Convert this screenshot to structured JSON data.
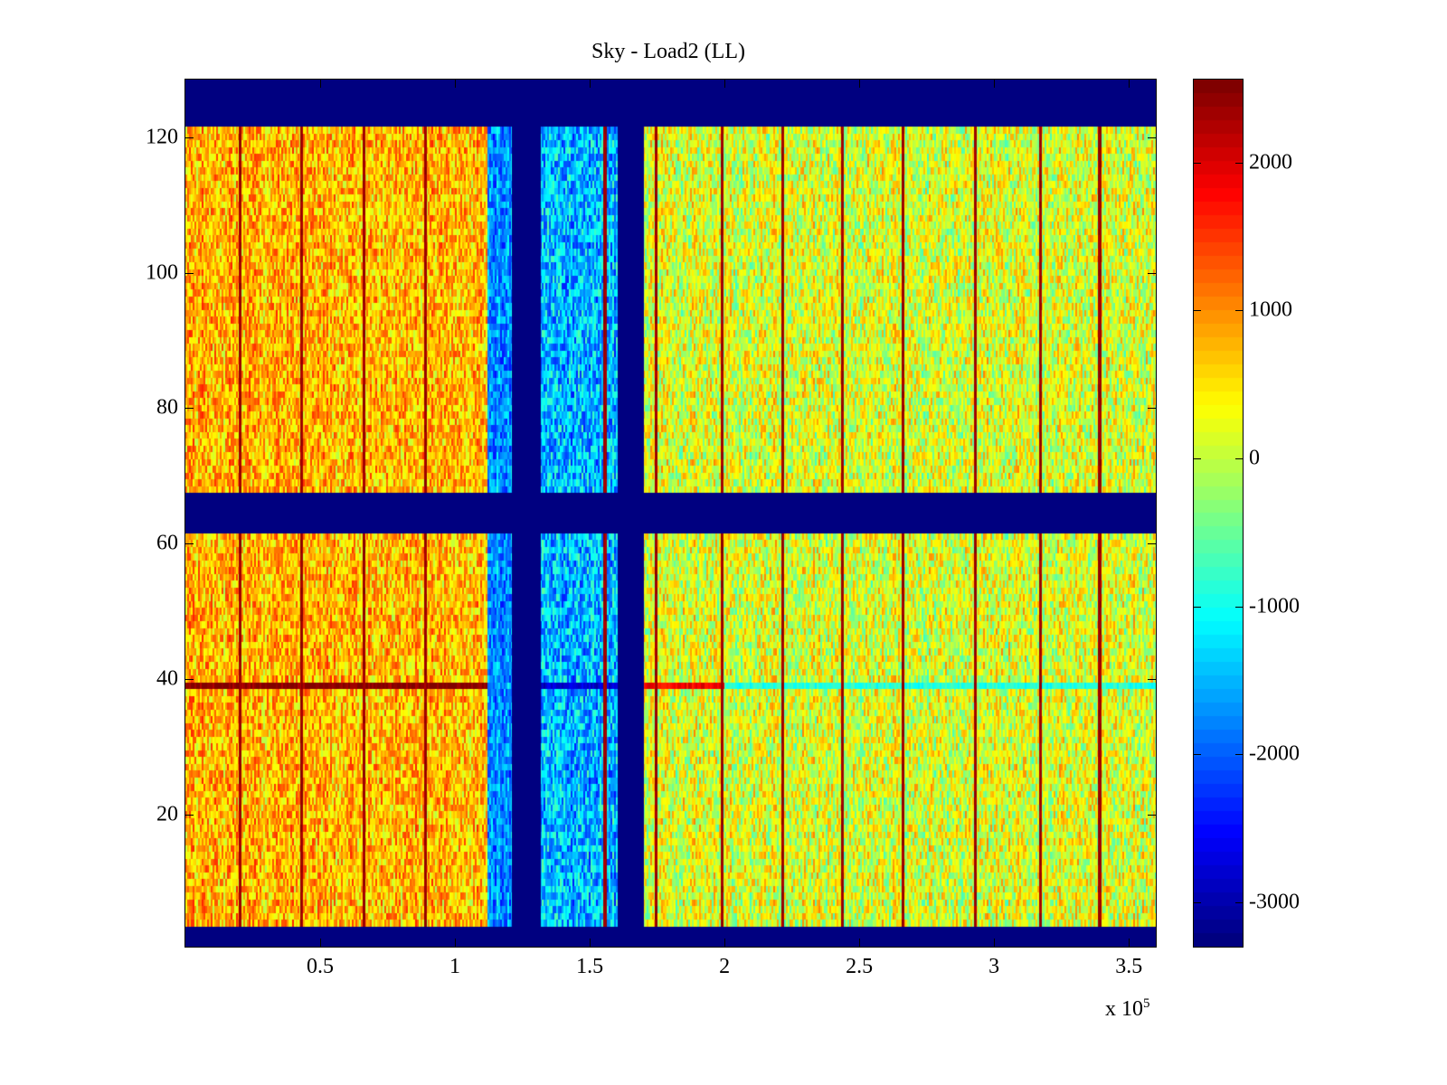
{
  "chart_data": {
    "type": "heatmap",
    "title": "Sky - Load2 (LL)",
    "xlabel": "",
    "ylabel": "",
    "x_multiplier_label": "x 10",
    "x_multiplier_exponent": "5",
    "xlim": [
      0,
      360000
    ],
    "ylim": [
      0.5,
      128.5
    ],
    "clim": [
      -3300,
      2560
    ],
    "colormap": "jet",
    "xticks": [
      {
        "v": 50000,
        "label": "0.5"
      },
      {
        "v": 100000,
        "label": "1"
      },
      {
        "v": 150000,
        "label": "1.5"
      },
      {
        "v": 200000,
        "label": "2"
      },
      {
        "v": 250000,
        "label": "2.5"
      },
      {
        "v": 300000,
        "label": "3"
      },
      {
        "v": 350000,
        "label": "3.5"
      }
    ],
    "yticks": [
      {
        "v": 20,
        "label": "20"
      },
      {
        "v": 40,
        "label": "40"
      },
      {
        "v": 60,
        "label": "60"
      },
      {
        "v": 80,
        "label": "80"
      },
      {
        "v": 100,
        "label": "100"
      },
      {
        "v": 120,
        "label": "120"
      }
    ],
    "cticks": [
      {
        "v": 2000,
        "label": "2000"
      },
      {
        "v": 1000,
        "label": "1000"
      },
      {
        "v": 0,
        "label": "0"
      },
      {
        "v": -1000,
        "label": "-1000"
      },
      {
        "v": -2000,
        "label": "-2000"
      },
      {
        "v": -3000,
        "label": "-3000"
      }
    ],
    "masked_value": -3300,
    "masked_rows": [
      [
        1,
        3
      ],
      [
        62,
        67
      ],
      [
        122,
        128
      ]
    ],
    "masked_x_ranges": [
      [
        121000,
        132000
      ],
      [
        160500,
        170000
      ]
    ],
    "regions": [
      {
        "x": [
          0,
          112000
        ],
        "mean": 750,
        "spread": 700
      },
      {
        "x": [
          112000,
          121000
        ],
        "mean": -1700,
        "spread": 600
      },
      {
        "x": [
          132000,
          160500
        ],
        "mean": -1500,
        "spread": 800
      },
      {
        "x": [
          170000,
          360000
        ],
        "mean": 150,
        "spread": 750
      }
    ],
    "spike_columns_x": [
      20000,
      43000,
      66000,
      89000,
      155500,
      174500,
      199000,
      221500,
      243600,
      266000,
      293000,
      317000,
      339000
    ],
    "spike_value": 2200,
    "anomalous_row": {
      "row": 39,
      "values": [
        {
          "x": [
            0,
            112000
          ],
          "value": 2500
        },
        {
          "x": [
            132000,
            160500
          ],
          "value": -2800
        },
        {
          "x": [
            170000,
            200000
          ],
          "value": 1800
        },
        {
          "x": [
            200000,
            360000
          ],
          "value": -900
        }
      ]
    }
  }
}
